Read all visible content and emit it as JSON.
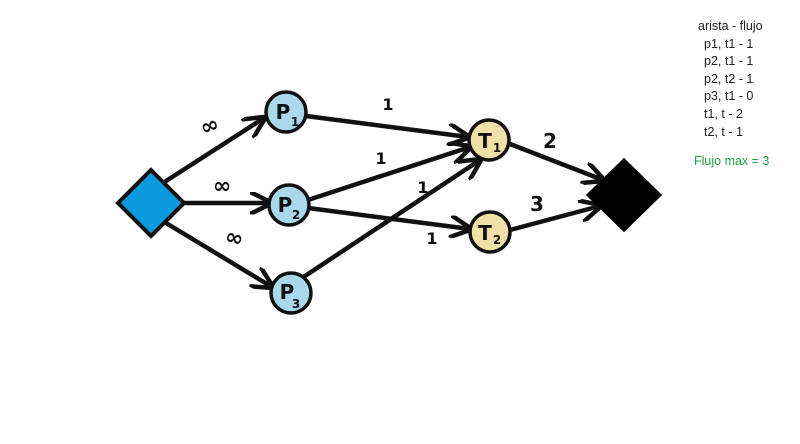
{
  "nodes": {
    "p1": {
      "name": "P1",
      "main": "P",
      "sub": "1"
    },
    "p2": {
      "name": "P2",
      "main": "P",
      "sub": "2"
    },
    "p3": {
      "name": "P3",
      "main": "P",
      "sub": "3"
    },
    "t1": {
      "name": "T1",
      "main": "T",
      "sub": "1"
    },
    "t2": {
      "name": "T2",
      "main": "T",
      "sub": "2"
    }
  },
  "edges": {
    "s_p1": "∞",
    "s_p2": "∞",
    "s_p3": "∞",
    "p1_t1": "1",
    "p2_t1": "1",
    "p2_t2": "1",
    "p3_t1": "1",
    "t1_t": "2",
    "t2_t": "3"
  },
  "legend": {
    "title": "arista - flujo",
    "rows": [
      "p1, t1 - 1",
      "p2, t1 - 1",
      "p2, t2 - 1",
      "p3, t1 - 0",
      "t1, t - 2",
      "t2, t - 1"
    ],
    "max_flow": "Flujo max = 3"
  },
  "colors": {
    "source": "#0b9be0",
    "sink": "#000000",
    "p_node": "#a9d8ea",
    "t_node": "#efe0a8",
    "max_flow_text": "#22a045"
  }
}
